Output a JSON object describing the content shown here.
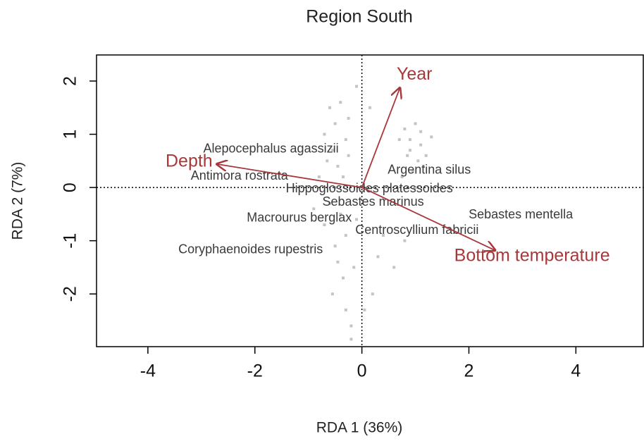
{
  "chart_data": {
    "type": "biplot",
    "title": "Region South",
    "x_label": "RDA 1 (36%)",
    "y_label": "RDA 2 (7%)",
    "xlim": [
      -4.96,
      5.26
    ],
    "ylim": [
      -2.99,
      2.49
    ],
    "xticks": [
      -4,
      -2,
      0,
      2,
      4
    ],
    "yticks": [
      -2,
      -1,
      0,
      1,
      2
    ],
    "point_color": "#c4c4c0",
    "arrow_color": "#a8373a",
    "label_color": "#3a3a3a",
    "sites": {
      "x": [
        -0.6,
        -0.5,
        -0.4,
        -0.7,
        -0.3,
        -0.55,
        -0.45,
        -0.65,
        -0.35,
        -0.5,
        -0.6,
        -0.4,
        -0.7,
        -0.3,
        -0.5,
        -0.45,
        -0.35,
        -0.55,
        -0.3,
        -0.2,
        -0.2,
        -0.1,
        -0.25,
        -0.8,
        -0.9,
        -0.15,
        -0.1,
        -0.25,
        0.8,
        0.9,
        1.0,
        1.1,
        0.85,
        1.05,
        0.95,
        1.15,
        0.75,
        1.0,
        1.3,
        0.7,
        1.1,
        0.9,
        1.2,
        0.3,
        0.6,
        0.8,
        0.2,
        0.4,
        0.15,
        0.05
      ],
      "y": [
        1.5,
        1.2,
        1.6,
        1.0,
        0.9,
        0.7,
        0.4,
        0.5,
        0.2,
        0.0,
        -0.3,
        -0.5,
        -0.7,
        -0.9,
        -1.1,
        -1.4,
        -1.7,
        -2.0,
        -2.3,
        -2.6,
        -2.85,
        1.9,
        1.3,
        0.2,
        -0.4,
        -1.5,
        -0.6,
        0.6,
        1.1,
        0.9,
        1.2,
        0.8,
        0.6,
        0.5,
        0.3,
        0.4,
        0.2,
        0.0,
        0.95,
        0.9,
        1.05,
        0.7,
        0.6,
        -1.3,
        -1.5,
        -1.0,
        -2.0,
        -0.9,
        1.5,
        -2.3
      ]
    },
    "species": [
      {
        "name": "Alepocephalus agassizii",
        "x": -1.7,
        "y": 0.72
      },
      {
        "name": "Antimora rostrata",
        "x": -2.29,
        "y": 0.21
      },
      {
        "name": "Argentina silus",
        "x": 1.26,
        "y": 0.32
      },
      {
        "name": "Hippoglossoides platessoides",
        "x": 0.14,
        "y": -0.03
      },
      {
        "name": "Sebastes marinus",
        "x": 0.21,
        "y": -0.28
      },
      {
        "name": "Sebastes mentella",
        "x": 2.97,
        "y": -0.52
      },
      {
        "name": "Macrourus berglax",
        "x": -1.17,
        "y": -0.58
      },
      {
        "name": "Centroscyllium fabricii",
        "x": 1.03,
        "y": -0.81
      },
      {
        "name": "Coryphaenoides rupestris",
        "x": -2.08,
        "y": -1.17
      }
    ],
    "arrows": [
      {
        "name": "Year",
        "x": 0.71,
        "y": 1.87
      },
      {
        "name": "Depth",
        "x": -2.71,
        "y": 0.44
      },
      {
        "name": "Bottom temperature",
        "x": 2.49,
        "y": -1.18
      }
    ]
  }
}
